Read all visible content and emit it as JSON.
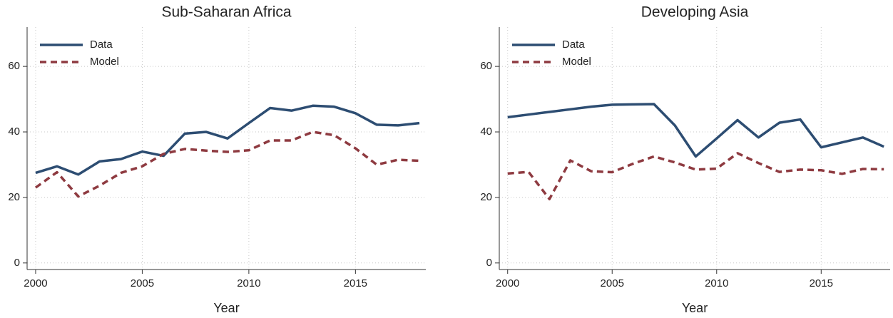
{
  "chart_data": [
    {
      "type": "line",
      "title": "Sub-Saharan Africa",
      "x_label": "Year",
      "x": [
        2000,
        2001,
        2002,
        2003,
        2004,
        2005,
        2006,
        2007,
        2008,
        2009,
        2010,
        2011,
        2012,
        2013,
        2014,
        2015,
        2016,
        2017,
        2018
      ],
      "series": [
        {
          "name": "Data",
          "color": "#2d4d72",
          "dashed": false,
          "values": [
            27.5,
            29.5,
            27,
            31,
            31.7,
            34,
            32.7,
            39.5,
            40,
            38,
            42.7,
            47.3,
            46.5,
            48,
            47.7,
            45.7,
            42.2,
            42,
            42.7
          ]
        },
        {
          "name": "Model",
          "color": "#8e3a40",
          "dashed": true,
          "values": [
            23,
            27.7,
            20.3,
            23.6,
            27.5,
            29.5,
            33.3,
            34.8,
            34.3,
            33.9,
            34.4,
            37.4,
            37.4,
            40,
            39,
            35,
            30,
            31.5,
            31.2
          ]
        }
      ],
      "xlim": [
        1999.6,
        2018.3
      ],
      "xticks": [
        2000,
        2005,
        2010,
        2015
      ],
      "ylim": [
        -2,
        72
      ],
      "yticks": [
        0,
        20,
        40,
        60
      ],
      "grid": true,
      "legend": "upper-left"
    },
    {
      "type": "line",
      "title": "Developing Asia",
      "x_label": "Year",
      "x": [
        2000,
        2001,
        2002,
        2003,
        2004,
        2005,
        2006,
        2007,
        2008,
        2009,
        2010,
        2011,
        2012,
        2013,
        2014,
        2015,
        2016,
        2017,
        2018
      ],
      "series": [
        {
          "name": "Data",
          "color": "#2d4d72",
          "dashed": false,
          "values": [
            44.5,
            45.3,
            46.1,
            46.9,
            47.7,
            48.3,
            48.4,
            48.5,
            42,
            32.5,
            38,
            43.6,
            38.3,
            42.8,
            43.8,
            35.3,
            36.8,
            38.3,
            35.5
          ]
        },
        {
          "name": "Model",
          "color": "#8e3a40",
          "dashed": true,
          "values": [
            27.3,
            27.8,
            19.5,
            31.3,
            28,
            27.7,
            30.3,
            32.5,
            30.7,
            28.5,
            28.8,
            33.5,
            30.5,
            27.8,
            28.5,
            28.3,
            27.2,
            28.7,
            28.6
          ]
        }
      ],
      "xlim": [
        1999.6,
        2018.3
      ],
      "xticks": [
        2000,
        2005,
        2010,
        2015
      ],
      "ylim": [
        -2,
        72
      ],
      "yticks": [
        0,
        20,
        40,
        60
      ],
      "grid": true,
      "legend": "upper-left"
    }
  ]
}
